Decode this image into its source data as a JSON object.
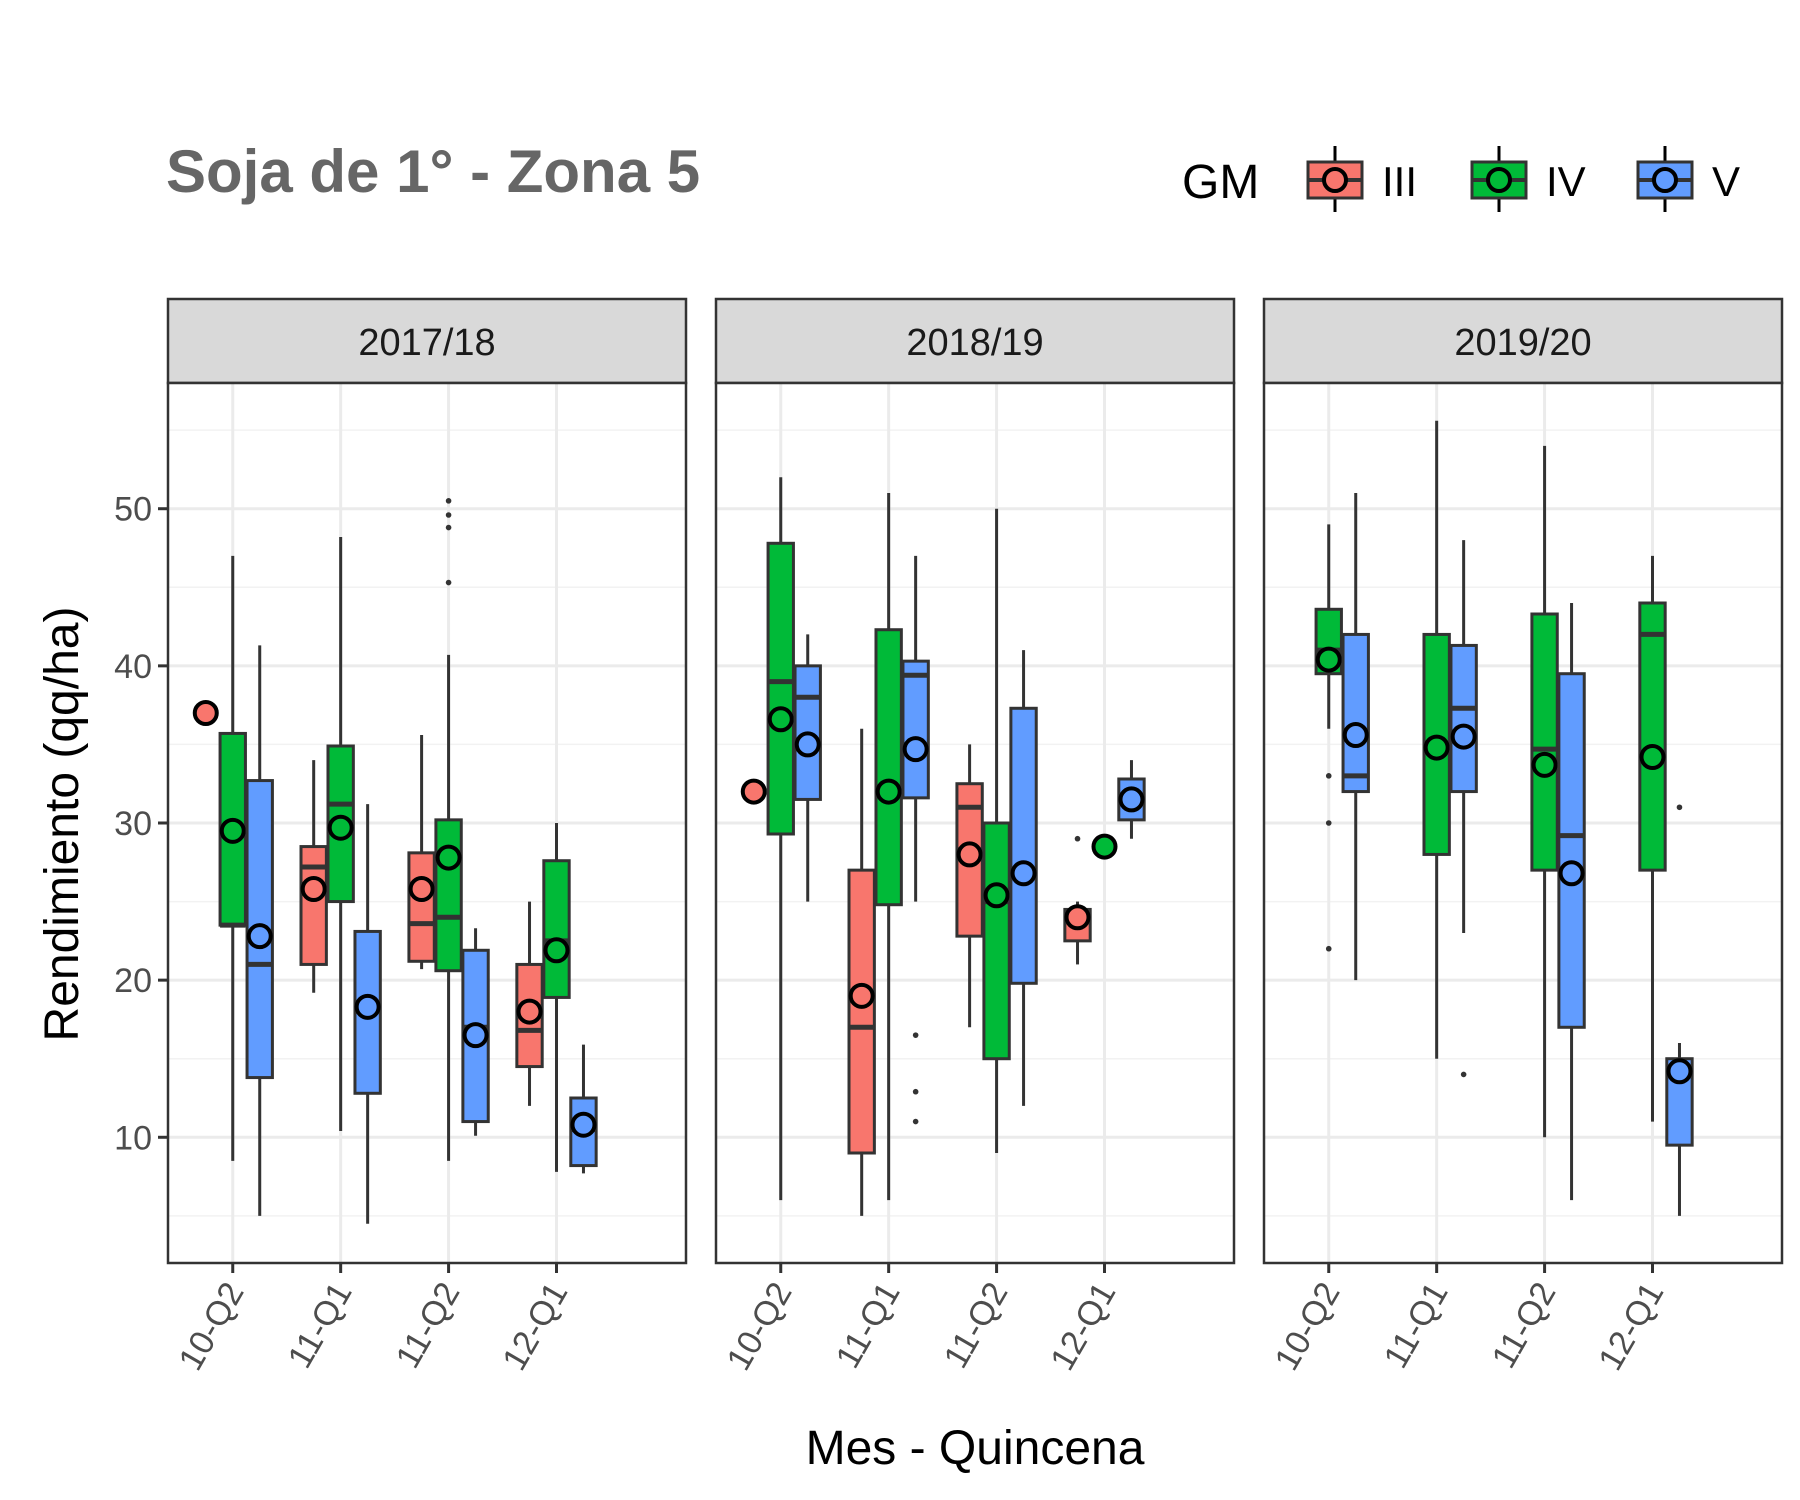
{
  "title": "Soja de 1° - Zona 5",
  "legend": {
    "title": "GM",
    "items": [
      {
        "label": "III",
        "color": "#F8766D"
      },
      {
        "label": "IV",
        "color": "#00BA38"
      },
      {
        "label": "V",
        "color": "#619CFF"
      }
    ]
  },
  "axes": {
    "xlabel": "Mes - Quincena",
    "ylabel": "Rendimiento (qq/ha)",
    "yticks": [
      10,
      20,
      30,
      40,
      50
    ]
  },
  "chart_data": {
    "type": "boxplot",
    "title": "Soja de 1° - Zona 5",
    "xlabel": "Mes - Quincena",
    "ylabel": "Rendimiento (qq/ha)",
    "ylim": [
      2,
      58
    ],
    "categories": [
      "10-Q2",
      "11-Q1",
      "11-Q2",
      "12-Q1"
    ],
    "grid": true,
    "legend_position": "top-right",
    "panels": [
      {
        "name": "2017/18",
        "boxes": [
          {
            "x": "10-Q2",
            "gm": "III",
            "min": 37,
            "q1": 37,
            "median": 37,
            "q3": 37,
            "max": 37,
            "mean": 37,
            "outliers": []
          },
          {
            "x": "10-Q2",
            "gm": "IV",
            "min": 8.5,
            "q1": 23.5,
            "median": 23.5,
            "q3": 35.7,
            "max": 47,
            "mean": 29.5,
            "outliers": []
          },
          {
            "x": "10-Q2",
            "gm": "V",
            "min": 5,
            "q1": 13.8,
            "median": 21,
            "q3": 32.7,
            "max": 41.3,
            "mean": 22.8,
            "outliers": []
          },
          {
            "x": "11-Q1",
            "gm": "III",
            "min": 19.2,
            "q1": 21,
            "median": 27.2,
            "q3": 28.5,
            "max": 34,
            "mean": 25.8,
            "outliers": []
          },
          {
            "x": "11-Q1",
            "gm": "IV",
            "min": 10.4,
            "q1": 25,
            "median": 31.2,
            "q3": 34.9,
            "max": 48.2,
            "mean": 29.7,
            "outliers": []
          },
          {
            "x": "11-Q1",
            "gm": "V",
            "min": 4.5,
            "q1": 12.8,
            "median": 18.5,
            "q3": 23.1,
            "max": 31.2,
            "mean": 18.3,
            "outliers": []
          },
          {
            "x": "11-Q2",
            "gm": "III",
            "min": 20.7,
            "q1": 21.2,
            "median": 23.6,
            "q3": 28.1,
            "max": 35.6,
            "mean": 25.8,
            "outliers": []
          },
          {
            "x": "11-Q2",
            "gm": "IV",
            "min": 8.5,
            "q1": 20.6,
            "median": 24,
            "q3": 30.2,
            "max": 40.7,
            "mean": 27.8,
            "outliers": [
              45.3,
              48.8,
              49.6,
              50.5
            ]
          },
          {
            "x": "11-Q2",
            "gm": "V",
            "min": 10.1,
            "q1": 11,
            "median": 17,
            "q3": 21.9,
            "max": 23.3,
            "mean": 16.5,
            "outliers": []
          },
          {
            "x": "12-Q1",
            "gm": "III",
            "min": 12,
            "q1": 14.5,
            "median": 16.8,
            "q3": 21,
            "max": 25,
            "mean": 18,
            "outliers": []
          },
          {
            "x": "12-Q1",
            "gm": "IV",
            "min": 7.8,
            "q1": 18.9,
            "median": 22.5,
            "q3": 27.6,
            "max": 30,
            "mean": 21.9,
            "outliers": []
          },
          {
            "x": "12-Q1",
            "gm": "V",
            "min": 7.7,
            "q1": 8.2,
            "median": 10.5,
            "q3": 12.5,
            "max": 15.9,
            "mean": 10.8,
            "outliers": []
          }
        ]
      },
      {
        "name": "2018/19",
        "boxes": [
          {
            "x": "10-Q2",
            "gm": "III",
            "min": 32,
            "q1": 32,
            "median": 32,
            "q3": 32,
            "max": 32,
            "mean": 32,
            "outliers": []
          },
          {
            "x": "10-Q2",
            "gm": "IV",
            "min": 6,
            "q1": 29.3,
            "median": 39,
            "q3": 47.8,
            "max": 52,
            "mean": 36.6,
            "outliers": []
          },
          {
            "x": "10-Q2",
            "gm": "V",
            "min": 25,
            "q1": 31.5,
            "median": 38,
            "q3": 40,
            "max": 42,
            "mean": 35,
            "outliers": []
          },
          {
            "x": "11-Q1",
            "gm": "III",
            "min": 5,
            "q1": 9,
            "median": 17,
            "q3": 27,
            "max": 36,
            "mean": 19,
            "outliers": []
          },
          {
            "x": "11-Q1",
            "gm": "IV",
            "min": 6,
            "q1": 24.8,
            "median": 32,
            "q3": 42.3,
            "max": 51,
            "mean": 32,
            "outliers": []
          },
          {
            "x": "11-Q1",
            "gm": "V",
            "min": 25,
            "q1": 31.6,
            "median": 39.4,
            "q3": 40.3,
            "max": 47,
            "mean": 34.7,
            "outliers": [
              11,
              12.9,
              16.5
            ]
          },
          {
            "x": "11-Q2",
            "gm": "III",
            "min": 17,
            "q1": 22.8,
            "median": 31,
            "q3": 32.5,
            "max": 35,
            "mean": 28,
            "outliers": []
          },
          {
            "x": "11-Q2",
            "gm": "IV",
            "min": 9,
            "q1": 15,
            "median": 25,
            "q3": 30,
            "max": 50,
            "mean": 25.4,
            "outliers": []
          },
          {
            "x": "11-Q2",
            "gm": "V",
            "min": 12,
            "q1": 19.8,
            "median": 27,
            "q3": 37.3,
            "max": 41,
            "mean": 26.8,
            "outliers": []
          },
          {
            "x": "12-Q1",
            "gm": "III",
            "min": 21,
            "q1": 22.5,
            "median": 24,
            "q3": 24.5,
            "max": 25,
            "mean": 24,
            "outliers": [
              29
            ]
          },
          {
            "x": "12-Q1",
            "gm": "IV",
            "min": 28.5,
            "q1": 28.5,
            "median": 28.5,
            "q3": 28.5,
            "max": 28.5,
            "mean": 28.5,
            "outliers": []
          },
          {
            "x": "12-Q1",
            "gm": "V",
            "min": 29,
            "q1": 30.2,
            "median": 31.5,
            "q3": 32.8,
            "max": 34,
            "mean": 31.5,
            "outliers": []
          }
        ]
      },
      {
        "name": "2019/20",
        "boxes": [
          {
            "x": "10-Q2",
            "gm": "IV",
            "min": 36,
            "q1": 39.5,
            "median": 41,
            "q3": 43.6,
            "max": 49,
            "mean": 40.4,
            "outliers": [
              22,
              30,
              33
            ]
          },
          {
            "x": "10-Q2",
            "gm": "V",
            "min": 20,
            "q1": 32,
            "median": 33,
            "q3": 42,
            "max": 51,
            "mean": 35.6,
            "outliers": []
          },
          {
            "x": "11-Q1",
            "gm": "IV",
            "min": 15,
            "q1": 28,
            "median": 35,
            "q3": 42,
            "max": 55.6,
            "mean": 34.8,
            "outliers": []
          },
          {
            "x": "11-Q1",
            "gm": "V",
            "min": 23,
            "q1": 32,
            "median": 37.3,
            "q3": 41.3,
            "max": 48,
            "mean": 35.5,
            "outliers": [
              14
            ]
          },
          {
            "x": "11-Q2",
            "gm": "IV",
            "min": 10,
            "q1": 27,
            "median": 34.7,
            "q3": 43.3,
            "max": 54,
            "mean": 33.7,
            "outliers": []
          },
          {
            "x": "11-Q2",
            "gm": "V",
            "min": 6,
            "q1": 17,
            "median": 29.2,
            "q3": 39.5,
            "max": 44,
            "mean": 26.8,
            "outliers": []
          },
          {
            "x": "12-Q1",
            "gm": "IV",
            "min": 11,
            "q1": 27,
            "median": 42,
            "q3": 44,
            "max": 47,
            "mean": 34.2,
            "outliers": []
          },
          {
            "x": "12-Q1",
            "gm": "V",
            "min": 5,
            "q1": 9.5,
            "median": 14,
            "q3": 15,
            "max": 16,
            "mean": 14.2,
            "outliers": [
              31
            ]
          }
        ]
      }
    ]
  }
}
